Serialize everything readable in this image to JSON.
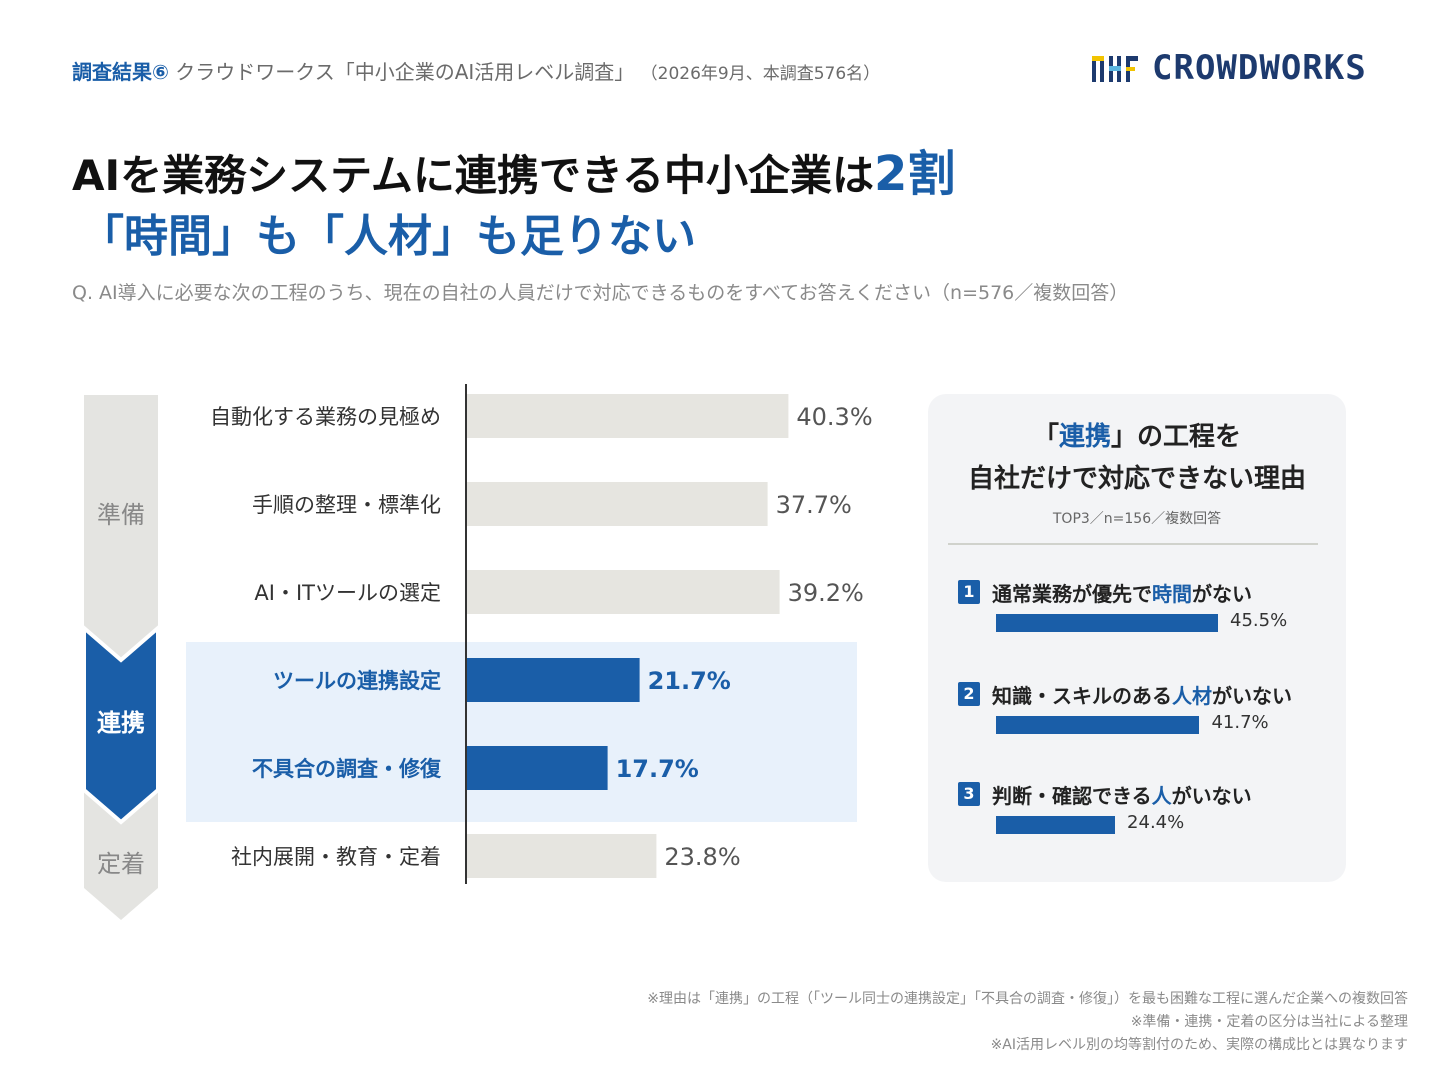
{
  "header": {
    "tag": "調査結果⑥",
    "survey": "クラウドワークス「中小企業のAI活用レベル調査」",
    "note": "（2026年9月、本調査576名）"
  },
  "logo": {
    "text": "CROWDWORKS",
    "icon": "crowdworks-logo-icon"
  },
  "title": {
    "line1_main": "AIを業務システムに連携できる中小企業は",
    "line1_accent": "2割",
    "line2": "「時間」も「人材」も足りない"
  },
  "question": "Q. AI導入に必要な次の工程のうち、現在の自社の人員だけで対応できるものをすべてお答えください（n=576／複数回答）",
  "colors": {
    "accent": "#1a5ea8",
    "bar_gray": "#e6e5e0",
    "highlight_bg": "#e8f1fb",
    "phase_gray": "#e4e4e1"
  },
  "chart_data": [
    {
      "type": "bar",
      "orientation": "horizontal",
      "categories": [
        "自動化する業務の見極め",
        "手順の整理・標準化",
        "AI・ITツールの選定",
        "ツールの連携設定",
        "不具合の調査・修復",
        "社内展開・教育・定着"
      ],
      "values": [
        40.3,
        37.7,
        39.2,
        21.7,
        17.7,
        23.8
      ],
      "value_labels": [
        "40.3%",
        "37.7%",
        "39.2%",
        "21.7%",
        "17.7%",
        "23.8%"
      ],
      "highlighted": [
        false,
        false,
        false,
        true,
        true,
        false
      ],
      "xlim": [
        0,
        50
      ],
      "phases": [
        {
          "label": "準備",
          "rows": [
            0,
            1,
            2
          ],
          "highlight": false
        },
        {
          "label": "連携",
          "rows": [
            3,
            4
          ],
          "highlight": true
        },
        {
          "label": "定着",
          "rows": [
            5
          ],
          "highlight": false
        }
      ]
    },
    {
      "type": "bar",
      "orientation": "horizontal",
      "title_pre": "「",
      "title_accent": "連携",
      "title_post": "」の工程を",
      "title_line2": "自社だけで対応できない理由",
      "subtitle": "TOP3／n=156／複数回答",
      "items": [
        {
          "rank": "1",
          "label_parts": [
            "通常業務が優先で",
            "時間",
            "がない"
          ],
          "value": 45.5,
          "value_label": "45.5%"
        },
        {
          "rank": "2",
          "label_parts": [
            "知識・スキルのある",
            "人材",
            "がいない"
          ],
          "value": 41.7,
          "value_label": "41.7%"
        },
        {
          "rank": "3",
          "label_parts": [
            "判断・確認できる",
            "人",
            "がいない"
          ],
          "value": 24.4,
          "value_label": "24.4%"
        }
      ],
      "xlim": [
        0,
        45.5
      ]
    }
  ],
  "footnotes": [
    "※理由は「連携」の工程（「ツール同士の連携設定」「不具合の調査・修復」）を最も困難な工程に選んだ企業への複数回答",
    "※準備・連携・定着の区分は当社による整理",
    "※AI活用レベル別の均等割付のため、実際の構成比とは異なります"
  ]
}
